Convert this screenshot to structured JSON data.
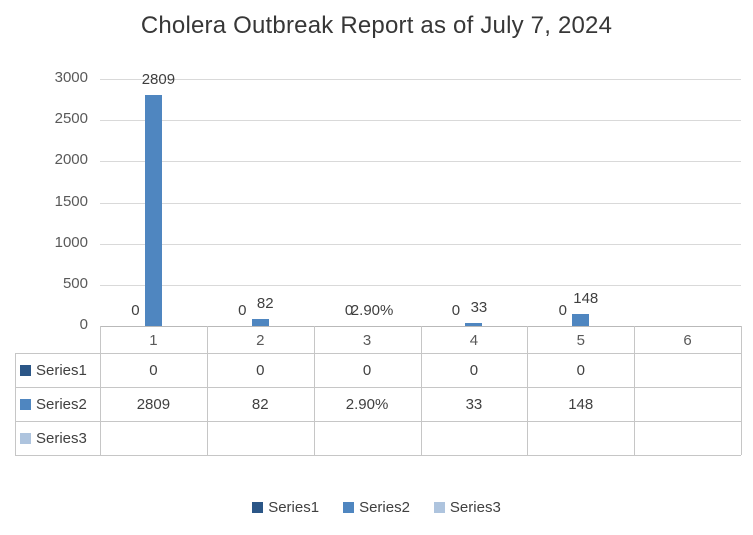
{
  "chart_data": {
    "type": "bar",
    "title": "Cholera Outbreak Report as of July 7, 2024",
    "categories": [
      "1",
      "2",
      "3",
      "4",
      "5",
      "6"
    ],
    "series": [
      {
        "name": "Series1",
        "color": "#2b5687",
        "labels": [
          "0",
          "0",
          "0",
          "0",
          "0",
          ""
        ],
        "plot": [
          0,
          0,
          0,
          0,
          0,
          null
        ]
      },
      {
        "name": "Series2",
        "color": "#4f86c0",
        "labels": [
          "2809",
          "82",
          "2.90%",
          "33",
          "148",
          ""
        ],
        "plot": [
          2809,
          82,
          0.029,
          33,
          148,
          null
        ]
      },
      {
        "name": "Series3",
        "color": "#aec4de",
        "labels": [
          "",
          "",
          "",
          "",
          "",
          ""
        ],
        "plot": [
          null,
          null,
          null,
          null,
          null,
          null
        ]
      }
    ],
    "ylim": [
      0,
      3000
    ],
    "yticks": [
      0,
      500,
      1000,
      1500,
      2000,
      2500,
      3000
    ],
    "grid": true,
    "legend_position": "bottom",
    "legend_items": [
      "Series1",
      "Series2",
      "Series3"
    ],
    "data_table_shown": true
  }
}
